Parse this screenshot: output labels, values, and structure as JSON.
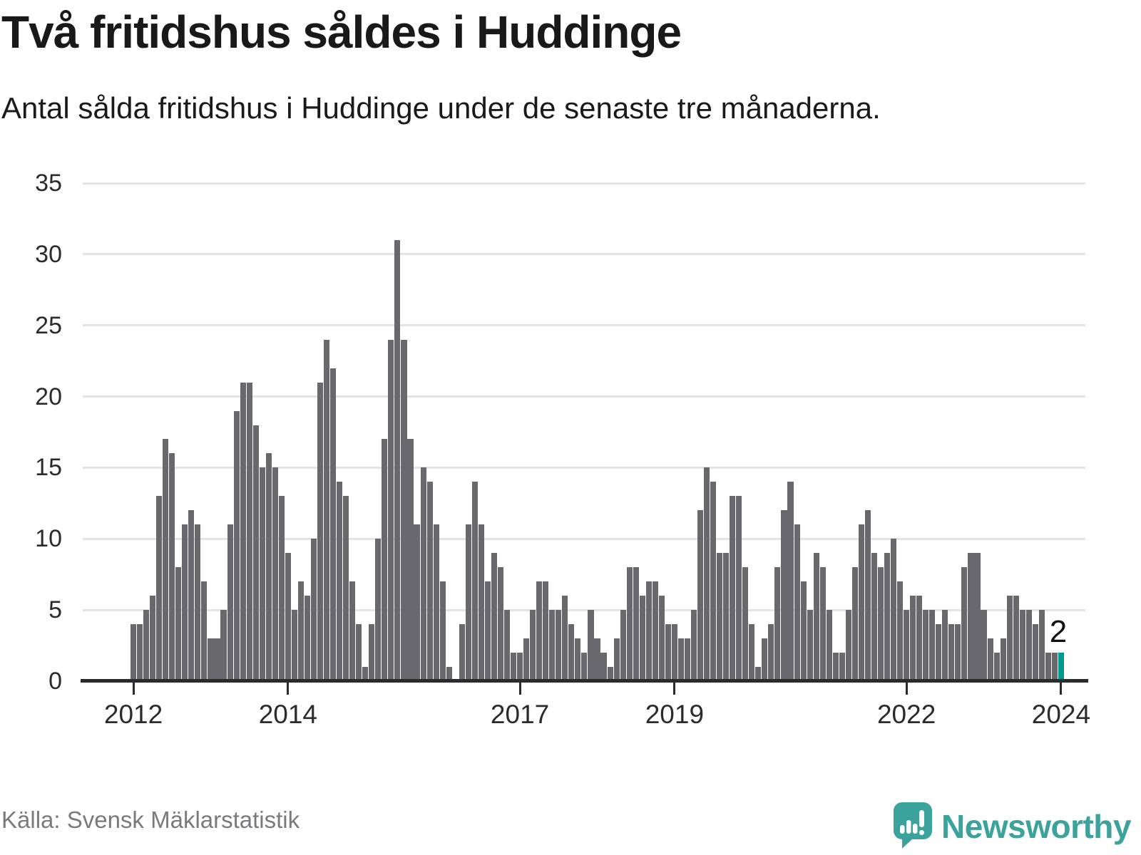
{
  "header": {
    "title": "Två fritidshus såldes i Huddinge",
    "subtitle": "Antal sålda fritidshus i Huddinge under de senaste tre månaderna."
  },
  "footer": {
    "source": "Källa: Svensk Mäklarstatistik",
    "brand_name": "Newsworthy"
  },
  "colors": {
    "bar": "#68686d",
    "highlight": "#00998f",
    "grid": "#e4e4e4",
    "axis": "#2b2b2b",
    "brand_teal": "#3ba39c"
  },
  "chart_data": {
    "type": "bar",
    "title": "Två fritidshus såldes i Huddinge",
    "subtitle": "Antal sålda fritidshus i Huddinge under de senaste tre månaderna.",
    "x_unit": "month",
    "x_start": "2012-01",
    "x_end": "2024-01",
    "ylim": [
      0,
      35
    ],
    "grid": true,
    "legend": false,
    "yticks": [
      0,
      5,
      10,
      15,
      20,
      25,
      30,
      35
    ],
    "xticks": [
      {
        "index": 0,
        "label": "2012"
      },
      {
        "index": 24,
        "label": "2014"
      },
      {
        "index": 60,
        "label": "2017"
      },
      {
        "index": 84,
        "label": "2019"
      },
      {
        "index": 120,
        "label": "2022"
      },
      {
        "index": 144,
        "label": "2024"
      }
    ],
    "values": [
      4,
      4,
      5,
      6,
      13,
      17,
      16,
      8,
      11,
      12,
      11,
      7,
      3,
      3,
      5,
      11,
      19,
      21,
      21,
      18,
      15,
      16,
      15,
      13,
      9,
      5,
      7,
      6,
      10,
      21,
      24,
      22,
      14,
      13,
      7,
      4,
      1,
      4,
      10,
      17,
      24,
      31,
      24,
      17,
      11,
      15,
      14,
      11,
      7,
      1,
      0,
      4,
      11,
      14,
      11,
      7,
      9,
      8,
      5,
      2,
      2,
      3,
      5,
      7,
      7,
      5,
      5,
      6,
      4,
      3,
      2,
      5,
      3,
      2,
      1,
      3,
      5,
      8,
      8,
      6,
      7,
      7,
      6,
      4,
      4,
      3,
      3,
      5,
      12,
      15,
      14,
      9,
      9,
      13,
      13,
      8,
      4,
      1,
      3,
      4,
      8,
      12,
      14,
      11,
      7,
      5,
      9,
      8,
      5,
      2,
      2,
      5,
      8,
      11,
      12,
      9,
      8,
      9,
      10,
      7,
      5,
      6,
      6,
      5,
      5,
      4,
      5,
      4,
      4,
      8,
      9,
      9,
      5,
      3,
      2,
      3,
      6,
      6,
      5,
      5,
      4,
      5,
      2,
      2,
      2
    ],
    "highlight_index": 144,
    "highlight_label": "2"
  }
}
